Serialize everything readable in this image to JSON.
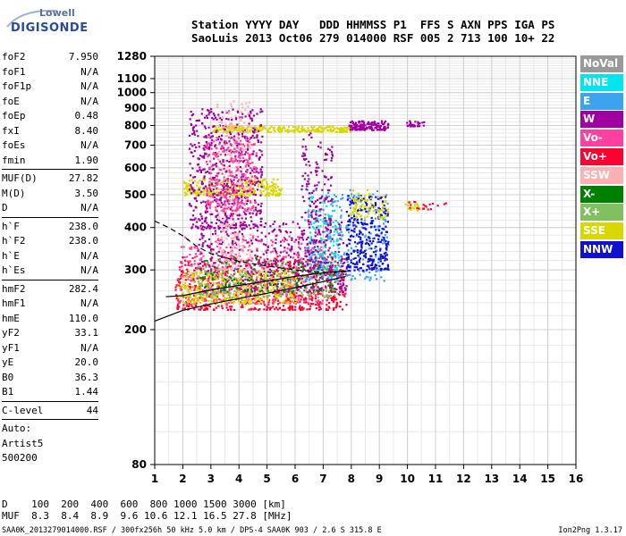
{
  "logo": {
    "line1": "Lowell",
    "line2": "DIGISONDE"
  },
  "header": {
    "line1": "Station YYYY DAY   DDD HHMMSS P1  FFS S AXN PPS IGA PS",
    "line2": "SaoLuis 2013 Oct06 279 014000 RSF 005 2 713 100 10+ 22"
  },
  "params": {
    "group1": [
      {
        "label": "foF2",
        "value": "7.950"
      },
      {
        "label": "foF1",
        "value": "N/A"
      },
      {
        "label": "foF1p",
        "value": "N/A"
      },
      {
        "label": "foE",
        "value": "N/A"
      },
      {
        "label": "foEp",
        "value": "0.48"
      },
      {
        "label": "fxI",
        "value": "8.40"
      },
      {
        "label": "foEs",
        "value": "N/A"
      },
      {
        "label": "fmin",
        "value": "1.90"
      }
    ],
    "group2": [
      {
        "label": "MUF(D)",
        "value": "27.82"
      },
      {
        "label": "M(D)",
        "value": "3.50"
      },
      {
        "label": "D",
        "value": "N/A"
      }
    ],
    "group3": [
      {
        "label": "h`F",
        "value": "238.0"
      },
      {
        "label": "h`F2",
        "value": "238.0"
      },
      {
        "label": "h`E",
        "value": "N/A"
      },
      {
        "label": "h`Es",
        "value": "N/A"
      }
    ],
    "group4": [
      {
        "label": "hmF2",
        "value": "282.4"
      },
      {
        "label": "hmF1",
        "value": "N/A"
      },
      {
        "label": "hmE",
        "value": "110.0"
      },
      {
        "label": "yF2",
        "value": "33.1"
      },
      {
        "label": "yF1",
        "value": "N/A"
      },
      {
        "label": "yE",
        "value": "20.0"
      },
      {
        "label": "B0",
        "value": "36.3"
      },
      {
        "label": "B1",
        "value": "1.44"
      }
    ],
    "clevel": {
      "label": "C-level",
      "value": "44"
    },
    "auto": [
      "Auto:",
      "Artist5",
      "500200"
    ]
  },
  "legend": [
    {
      "label": "NoVal",
      "color": "#999999"
    },
    {
      "label": "NNE",
      "color": "#00e5ee"
    },
    {
      "label": "E",
      "color": "#3ba4f0"
    },
    {
      "label": "W",
      "color": "#a000a0"
    },
    {
      "label": "Vo-",
      "color": "#ff40a0"
    },
    {
      "label": "Vo+",
      "color": "#ff0030"
    },
    {
      "label": "SSW",
      "color": "#ffb0b0"
    },
    {
      "label": "X-",
      "color": "#008000"
    },
    {
      "label": "X+",
      "color": "#80c060"
    },
    {
      "label": "SSE",
      "color": "#d8d800"
    },
    {
      "label": "NNW",
      "color": "#1010d0"
    }
  ],
  "dmuf": {
    "line1": "D    100  200  400  600  800 1000 1500 3000 [km]",
    "line2": "MUF  8.3  8.4  8.9  9.6 10.6 12.1 16.5 27.8 [MHz]"
  },
  "footer": {
    "left": "SAA0K_2013279014000.RSF / 300fx256h 50 kHz 5.0 km / DPS-4 SAA0K 903 / 2.6 S 315.8 E",
    "right": "Ion2Png 1.3.17"
  },
  "chart_data": {
    "type": "scatter",
    "title": "",
    "xlabel": "",
    "ylabel": "",
    "xlim": [
      1,
      16
    ],
    "ylim": [
      80,
      1280
    ],
    "y_scale": "log",
    "x_ticks": [
      1,
      2,
      3,
      4,
      5,
      6,
      7,
      8,
      9,
      10,
      11,
      12,
      13,
      14,
      15,
      16
    ],
    "y_ticks": [
      80,
      200,
      300,
      400,
      500,
      600,
      700,
      800,
      900,
      1000,
      1100,
      1280
    ],
    "grid": true,
    "clusters": [
      {
        "name": "Vo+",
        "color": "#ff0030",
        "fmin": 1.7,
        "fmax": 7.8,
        "hmin": 230,
        "hmax": 330,
        "n": 700
      },
      {
        "name": "Vo-",
        "color": "#ff40a0",
        "fmin": 1.8,
        "fmax": 7.0,
        "hmin": 240,
        "hmax": 380,
        "n": 400
      },
      {
        "name": "W",
        "color": "#a000a0",
        "fmin": 2.5,
        "fmax": 7.8,
        "hmin": 260,
        "hmax": 420,
        "n": 450
      },
      {
        "name": "SSE",
        "color": "#d8d800",
        "fmin": 1.8,
        "fmax": 6.0,
        "hmin": 240,
        "hmax": 300,
        "n": 350
      },
      {
        "name": "X+",
        "color": "#80c060",
        "fmin": 2.5,
        "fmax": 7.5,
        "hmin": 250,
        "hmax": 320,
        "n": 200
      },
      {
        "name": "X-",
        "color": "#008000",
        "fmin": 2.6,
        "fmax": 7.5,
        "hmin": 260,
        "hmax": 330,
        "n": 120
      },
      {
        "name": "E",
        "color": "#3ba4f0",
        "fmin": 6.3,
        "fmax": 9.3,
        "hmin": 280,
        "hmax": 520,
        "n": 250
      },
      {
        "name": "NNE",
        "color": "#00e5ee",
        "fmin": 6.5,
        "fmax": 7.6,
        "hmin": 300,
        "hmax": 500,
        "n": 120
      },
      {
        "name": "NNW",
        "color": "#1010d0",
        "fmin": 7.8,
        "fmax": 9.3,
        "hmin": 300,
        "hmax": 500,
        "n": 300
      },
      {
        "name": "SSE",
        "color": "#d8d800",
        "fmin": 3.0,
        "fmax": 8.0,
        "hmin": 770,
        "hmax": 800,
        "n": 250
      },
      {
        "name": "W",
        "color": "#a000a0",
        "fmin": 7.9,
        "fmax": 9.3,
        "hmin": 780,
        "hmax": 830,
        "n": 140
      },
      {
        "name": "W",
        "color": "#a000a0",
        "fmin": 9.9,
        "fmax": 10.6,
        "hmin": 800,
        "hmax": 830,
        "n": 30
      },
      {
        "name": "SSE",
        "color": "#d8d800",
        "fmin": 2.0,
        "fmax": 5.5,
        "hmin": 500,
        "hmax": 560,
        "n": 300
      },
      {
        "name": "W",
        "color": "#a000a0",
        "fmin": 2.2,
        "fmax": 4.8,
        "hmin": 400,
        "hmax": 900,
        "n": 600
      },
      {
        "name": "SSW",
        "color": "#ffb0b0",
        "fmin": 3.2,
        "fmax": 4.4,
        "hmin": 300,
        "hmax": 950,
        "n": 250
      },
      {
        "name": "Vo-",
        "color": "#ff40a0",
        "fmin": 2.8,
        "fmax": 4.6,
        "hmin": 450,
        "hmax": 750,
        "n": 250
      },
      {
        "name": "W",
        "color": "#a000a0",
        "fmin": 6.2,
        "fmax": 7.3,
        "hmin": 300,
        "hmax": 780,
        "n": 200
      },
      {
        "name": "SSE",
        "color": "#d8d800",
        "fmin": 9.9,
        "fmax": 10.4,
        "hmin": 450,
        "hmax": 480,
        "n": 20
      },
      {
        "name": "Vo+",
        "color": "#ff0030",
        "fmin": 10.0,
        "fmax": 11.4,
        "hmin": 455,
        "hmax": 480,
        "n": 20
      },
      {
        "name": "SSE",
        "color": "#d8d800",
        "fmin": 7.9,
        "fmax": 9.3,
        "hmin": 430,
        "hmax": 520,
        "n": 80
      }
    ],
    "profile_solid": [
      {
        "x": 1.0,
        "y": 212
      },
      {
        "x": 2.0,
        "y": 228
      },
      {
        "x": 3.0,
        "y": 238
      },
      {
        "x": 4.0,
        "y": 247
      },
      {
        "x": 5.0,
        "y": 256
      },
      {
        "x": 6.0,
        "y": 266
      },
      {
        "x": 7.0,
        "y": 277
      },
      {
        "x": 7.8,
        "y": 287
      }
    ],
    "trace_solid": [
      {
        "x": 1.4,
        "y": 250
      },
      {
        "x": 2.0,
        "y": 252
      },
      {
        "x": 3.0,
        "y": 262
      },
      {
        "x": 4.0,
        "y": 270
      },
      {
        "x": 5.0,
        "y": 278
      },
      {
        "x": 6.0,
        "y": 287
      },
      {
        "x": 7.0,
        "y": 294
      },
      {
        "x": 7.8,
        "y": 298
      }
    ],
    "profile_dashed": [
      {
        "x": 1.0,
        "y": 418
      },
      {
        "x": 1.5,
        "y": 400
      },
      {
        "x": 2.0,
        "y": 378
      },
      {
        "x": 2.5,
        "y": 352
      },
      {
        "x": 3.0,
        "y": 335
      },
      {
        "x": 4.0,
        "y": 318
      },
      {
        "x": 5.0,
        "y": 308
      },
      {
        "x": 6.0,
        "y": 300
      },
      {
        "x": 7.0,
        "y": 295
      },
      {
        "x": 7.8,
        "y": 296
      }
    ]
  }
}
